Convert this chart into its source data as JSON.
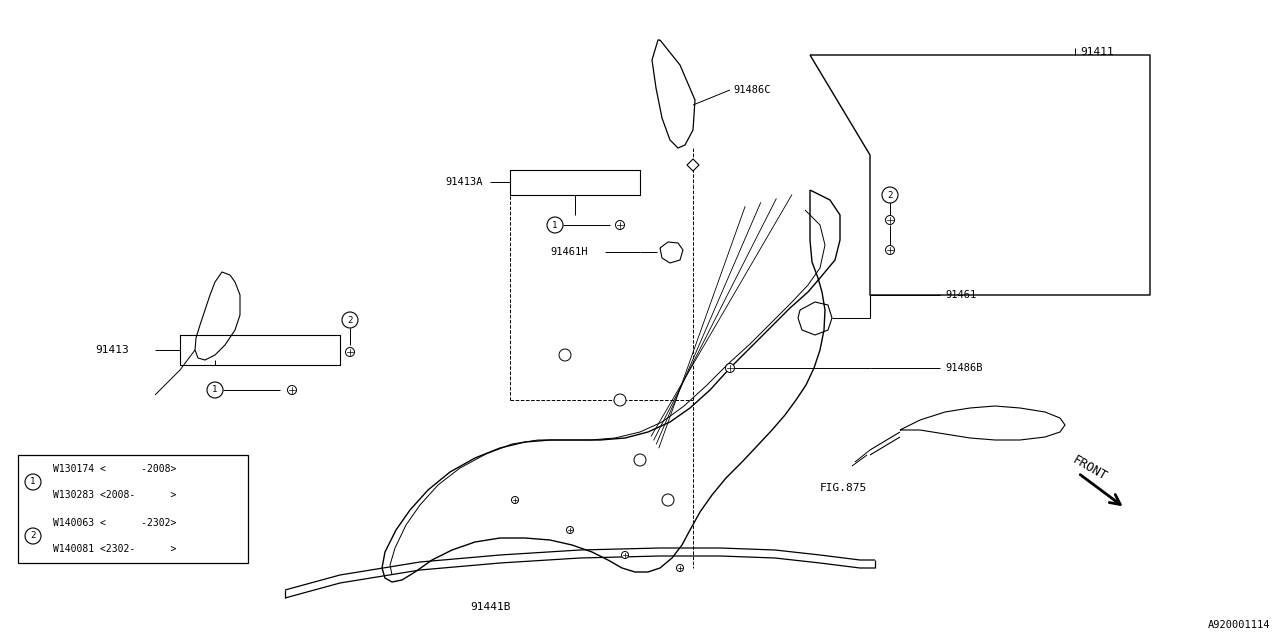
{
  "bg_color": "#ffffff",
  "line_color": "#000000",
  "fig_width": 12.8,
  "fig_height": 6.4,
  "diagram_code": "A920001114",
  "front_label": "FRONT",
  "fig_ref": "FIG.875",
  "legend_rows": [
    [
      "1",
      "W130174 <      -2008>"
    ],
    [
      "1",
      "W130283 <2008-      >"
    ],
    [
      "2",
      "W140063 <      -2302>"
    ],
    [
      "2",
      "W140081 <2302-      >"
    ]
  ]
}
